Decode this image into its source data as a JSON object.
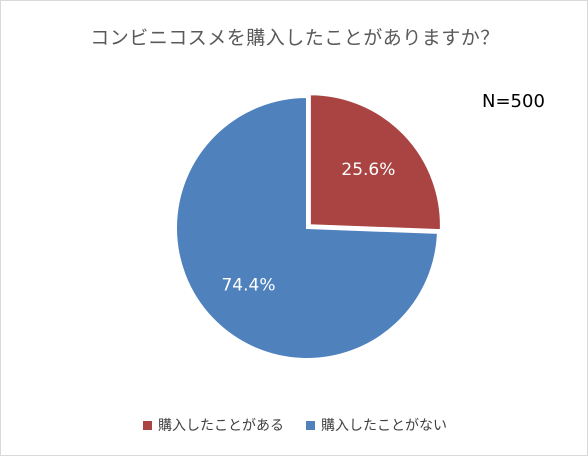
{
  "chart_data": {
    "type": "pie",
    "title": "コンビニコスメを購入したことがありますか？",
    "annotation": "N=500",
    "slices": [
      {
        "label": "購入したことがある",
        "value": 25.6,
        "display": "25.6%",
        "color": "#a94442"
      },
      {
        "label": "購入したことがない",
        "value": 74.4,
        "display": "74.4%",
        "color": "#4f81bd"
      }
    ],
    "legend_position": "bottom"
  }
}
